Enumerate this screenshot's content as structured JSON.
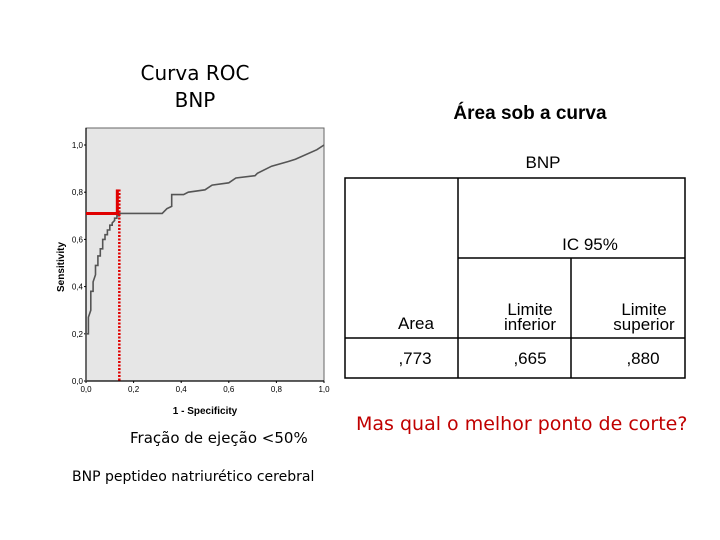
{
  "roc_title_line1": "Curva ROC",
  "roc_title_line2": "BNP",
  "area_title": "Área sob a curva",
  "table": {
    "variable": "BNP",
    "ci_header": "IC 95%",
    "col_area": "Area",
    "col_lower_1": "Limite",
    "col_lower_2": "inferior",
    "col_upper_1": "Limite",
    "col_upper_2": "superior",
    "area_value": ",773",
    "lower_value": ",665",
    "upper_value": ",880"
  },
  "footer_line1": "Fração de ejeção <50%",
  "footer_line2": "BNP peptideo natriurético cerebral",
  "question": "Mas qual o melhor ponto de corte?",
  "colors": {
    "curve": "#555555",
    "cutoff": "#e00000",
    "plot_bg": "#e6e6e6"
  },
  "chart_data": {
    "type": "line",
    "xlabel": "1 - Specificity",
    "ylabel": "Sensitivity",
    "xlim": [
      0,
      1
    ],
    "ylim": [
      0,
      1
    ],
    "x_ticks": [
      "0,0",
      "0,2",
      "0,4",
      "0,6",
      "0,8",
      "1,0"
    ],
    "y_ticks": [
      "0,0",
      "0,2",
      "0,4",
      "0,6",
      "0,8",
      "1,0"
    ],
    "series": [
      {
        "x": [
          0,
          0,
          0.01,
          0.01,
          0.02,
          0.02,
          0.03,
          0.03,
          0.04,
          0.04,
          0.05,
          0.05,
          0.06,
          0.06,
          0.07,
          0.07,
          0.08,
          0.08,
          0.09,
          0.09,
          0.1,
          0.1,
          0.11,
          0.11,
          0.12,
          0.12,
          0.13,
          0.13,
          0.14,
          0.14,
          0.32,
          0.34,
          0.36,
          0.36,
          0.41,
          0.43,
          0.5,
          0.53,
          0.6,
          0.63,
          0.71,
          0.72,
          0.78,
          0.85,
          0.88,
          0.97,
          1
        ],
        "y": [
          0,
          0.2,
          0.2,
          0.27,
          0.3,
          0.38,
          0.38,
          0.42,
          0.45,
          0.49,
          0.49,
          0.53,
          0.53,
          0.56,
          0.56,
          0.6,
          0.6,
          0.62,
          0.62,
          0.64,
          0.64,
          0.66,
          0.66,
          0.67,
          0.68,
          0.69,
          0.69,
          0.7,
          0.7,
          0.71,
          0.71,
          0.73,
          0.74,
          0.79,
          0.79,
          0.8,
          0.81,
          0.83,
          0.84,
          0.86,
          0.87,
          0.88,
          0.91,
          0.93,
          0.94,
          0.98,
          1.0
        ]
      }
    ],
    "cutoff": {
      "x": 0.14,
      "y": 0.71
    }
  }
}
